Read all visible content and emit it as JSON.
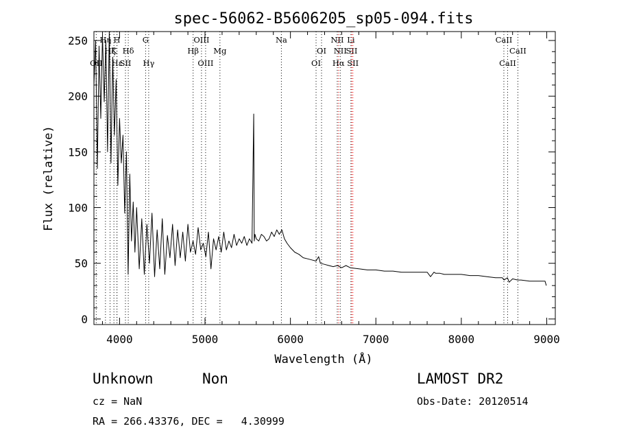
{
  "chart_data": {
    "type": "line",
    "title": "spec-56062-B5606205_sp05-094.fits",
    "xlabel": "Wavelength (Å)",
    "ylabel": "Flux (relative)",
    "xlim": [
      3700,
      9100
    ],
    "ylim": [
      -5,
      258
    ],
    "xticks": [
      4000,
      5000,
      6000,
      7000,
      8000,
      9000
    ],
    "yticks": [
      0,
      50,
      100,
      150,
      200,
      250
    ],
    "grid": false,
    "series": [
      {
        "x": [
          3700,
          3720,
          3740,
          3760,
          3780,
          3800,
          3820,
          3840,
          3860,
          3880,
          3900,
          3920,
          3940,
          3960,
          3980,
          4000,
          4020,
          4040,
          4060,
          4080,
          4100,
          4120,
          4140,
          4160,
          4180,
          4200,
          4230,
          4260,
          4290,
          4320,
          4350,
          4380,
          4410,
          4440,
          4470,
          4500,
          4530,
          4560,
          4590,
          4620,
          4650,
          4680,
          4710,
          4740,
          4770,
          4800,
          4830,
          4860,
          4890,
          4920,
          4950,
          4980,
          5010,
          5040,
          5070,
          5100,
          5130,
          5160,
          5190,
          5220,
          5250,
          5280,
          5310,
          5340,
          5370,
          5400,
          5430,
          5460,
          5490,
          5520,
          5550,
          5570,
          5577,
          5585,
          5600,
          5630,
          5660,
          5690,
          5720,
          5750,
          5780,
          5810,
          5840,
          5870,
          5900,
          5930,
          5960,
          6000,
          6050,
          6100,
          6150,
          6200,
          6250,
          6300,
          6330,
          6350,
          6400,
          6450,
          6500,
          6550,
          6600,
          6650,
          6700,
          6800,
          6900,
          7000,
          7100,
          7200,
          7300,
          7400,
          7500,
          7600,
          7640,
          7680,
          7700,
          7750,
          7800,
          7900,
          8000,
          8100,
          8200,
          8300,
          8400,
          8480,
          8500,
          8540,
          8560,
          8600,
          8660,
          8700,
          8800,
          8900,
          8980,
          8995
        ],
        "values": [
          210,
          250,
          135,
          245,
          180,
          255,
          195,
          250,
          150,
          258,
          140,
          235,
          165,
          215,
          120,
          180,
          140,
          165,
          95,
          150,
          40,
          130,
          70,
          105,
          60,
          100,
          45,
          90,
          40,
          85,
          50,
          95,
          38,
          80,
          45,
          90,
          40,
          75,
          55,
          85,
          48,
          80,
          55,
          78,
          52,
          85,
          60,
          70,
          58,
          82,
          62,
          68,
          56,
          78,
          45,
          72,
          62,
          74,
          60,
          78,
          62,
          70,
          64,
          76,
          66,
          72,
          68,
          74,
          66,
          72,
          68,
          184,
          70,
          76,
          72,
          70,
          76,
          74,
          70,
          72,
          78,
          74,
          80,
          76,
          80,
          72,
          68,
          64,
          60,
          58,
          55,
          54,
          53,
          52,
          56,
          50,
          49,
          48,
          47,
          48,
          46,
          48,
          46,
          45,
          44,
          44,
          43,
          43,
          42,
          42,
          42,
          42,
          38,
          42,
          41,
          41,
          40,
          40,
          40,
          39,
          39,
          38,
          37,
          37,
          35,
          37,
          33,
          36,
          35,
          35,
          34,
          34,
          34,
          30
        ]
      }
    ],
    "spectral_lines": [
      {
        "label": "Hη",
        "wavelength": 3835,
        "row": 1,
        "color": "#000000"
      },
      {
        "label": "Hζ",
        "wavelength": 3889,
        "row": 2,
        "color": "#000000"
      },
      {
        "label": "OII",
        "wavelength": 3727,
        "row": 3,
        "color": "#000000"
      },
      {
        "label": "Hε",
        "wavelength": 3970,
        "row": 3,
        "color": "#000000"
      },
      {
        "label": "K",
        "wavelength": 3934,
        "row": 2,
        "color": "#000000"
      },
      {
        "label": "H",
        "wavelength": 3969,
        "row": 1,
        "color": "#000000"
      },
      {
        "label": "Hδ",
        "wavelength": 4102,
        "row": 2,
        "color": "#000000"
      },
      {
        "label": "SII",
        "wavelength": 4069,
        "row": 3,
        "color": "#000000"
      },
      {
        "label": "G",
        "wavelength": 4305,
        "row": 1,
        "color": "#000000"
      },
      {
        "label": "Hγ",
        "wavelength": 4341,
        "row": 3,
        "color": "#000000"
      },
      {
        "label": "Hβ",
        "wavelength": 4861,
        "row": 2,
        "color": "#000000"
      },
      {
        "label": "OIII",
        "wavelength": 4959,
        "row": 1,
        "color": "#000000"
      },
      {
        "label": "OIII",
        "wavelength": 5007,
        "row": 3,
        "color": "#000000"
      },
      {
        "label": "Mg",
        "wavelength": 5175,
        "row": 2,
        "color": "#000000"
      },
      {
        "label": "Na",
        "wavelength": 5894,
        "row": 1,
        "color": "#000000"
      },
      {
        "label": "OI",
        "wavelength": 6300,
        "row": 3,
        "color": "#000000"
      },
      {
        "label": "OI",
        "wavelength": 6364,
        "row": 2,
        "color": "#000000"
      },
      {
        "label": "NII",
        "wavelength": 6548,
        "row": 1,
        "color": "#000000"
      },
      {
        "label": "Hα",
        "wavelength": 6563,
        "row": 3,
        "color": "#ff0000"
      },
      {
        "label": "NII",
        "wavelength": 6583,
        "row": 2,
        "color": "#000000"
      },
      {
        "label": "Li",
        "wavelength": 6708,
        "row": 1,
        "color": "#000000"
      },
      {
        "label": "SII",
        "wavelength": 6717,
        "row": 2,
        "color": "#ff0000"
      },
      {
        "label": "SII",
        "wavelength": 6731,
        "row": 3,
        "color": "#ff0000"
      },
      {
        "label": "CaII",
        "wavelength": 8498,
        "row": 1,
        "color": "#000000"
      },
      {
        "label": "CaII",
        "wavelength": 8542,
        "row": 3,
        "color": "#000000"
      },
      {
        "label": "CaII",
        "wavelength": 8662,
        "row": 2,
        "color": "#000000"
      }
    ]
  },
  "footer": {
    "object_class": "Unknown",
    "subclass": "Non",
    "survey": "LAMOST DR2",
    "cz": "cz = NaN",
    "obs_date": "Obs-Date: 20120514",
    "coords": "RA = 266.43376, DEC =   4.30999"
  }
}
